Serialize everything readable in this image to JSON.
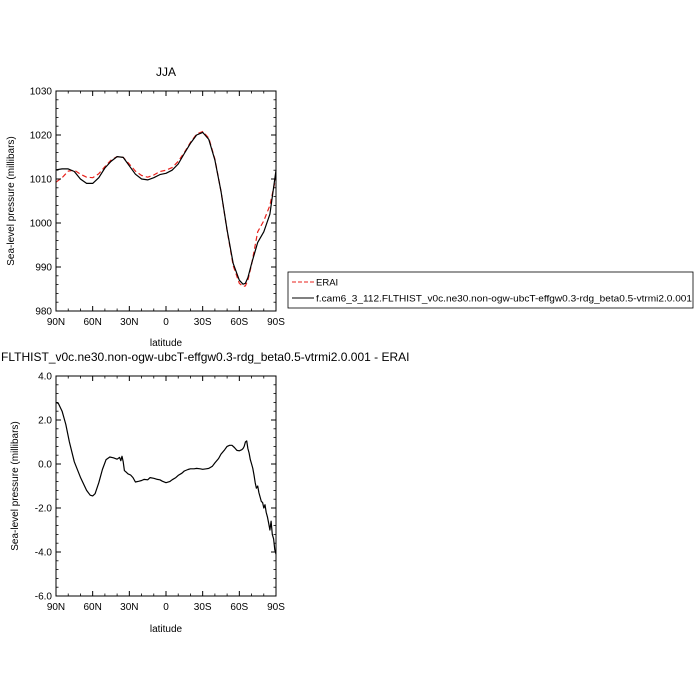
{
  "chart_data": [
    {
      "type": "line",
      "title": "JJA",
      "xlabel": "latitude",
      "ylabel": "Sea-level pressure (millibars)",
      "xlim": [
        90,
        -90
      ],
      "ylim": [
        980,
        1030
      ],
      "x_ticks": [
        90,
        60,
        30,
        0,
        -30,
        -60,
        -90
      ],
      "x_tick_labels": [
        "90N",
        "60N",
        "30N",
        "0",
        "30S",
        "60S",
        "90S"
      ],
      "y_ticks": [
        980,
        990,
        1000,
        1010,
        1020,
        1030
      ],
      "y_tick_labels": [
        "980",
        "990",
        "1000",
        "1010",
        "1020",
        "1030"
      ],
      "legend_position": "right",
      "series": [
        {
          "name": "ERAI",
          "color": "#e8211b",
          "dash": "dashed",
          "x": [
            90,
            85,
            80,
            75,
            70,
            65,
            60,
            55,
            50,
            45,
            40,
            35,
            30,
            25,
            20,
            15,
            10,
            5,
            0,
            -5,
            -10,
            -15,
            -20,
            -25,
            -30,
            -35,
            -40,
            -45,
            -50,
            -55,
            -60,
            -63,
            -65,
            -67,
            -70,
            -75,
            -80,
            -85,
            -90
          ],
          "y": [
            1009.3,
            1010.3,
            1011.8,
            1012.0,
            1011.1,
            1010.4,
            1010.3,
            1011.2,
            1012.8,
            1014.3,
            1015.1,
            1014.9,
            1013.4,
            1011.8,
            1010.8,
            1010.4,
            1010.9,
            1011.7,
            1012.0,
            1012.6,
            1014.0,
            1016.0,
            1018.3,
            1020.2,
            1020.8,
            1019.3,
            1014.5,
            1007.2,
            998.3,
            990.3,
            986.3,
            985.6,
            985.7,
            987.0,
            990.6,
            998.0,
            1000.5,
            1004.0,
            1010.5
          ]
        },
        {
          "name": "f.cam6_3_112.FLTHIST_v0c.ne30.non-ogw-ubcT-effgw0.3-rdg_beta0.5-vtrmi2.0.001",
          "color": "#000000",
          "dash": "solid",
          "x": [
            90,
            85,
            80,
            75,
            70,
            65,
            60,
            55,
            50,
            45,
            40,
            35,
            30,
            25,
            20,
            15,
            10,
            5,
            0,
            -5,
            -10,
            -15,
            -20,
            -25,
            -30,
            -35,
            -40,
            -45,
            -50,
            -55,
            -60,
            -63,
            -65,
            -67,
            -70,
            -75,
            -80,
            -85,
            -90
          ],
          "y": [
            1012.1,
            1012.3,
            1012.3,
            1011.7,
            1010.0,
            1009.0,
            1009.0,
            1010.3,
            1012.5,
            1014.0,
            1015.1,
            1014.9,
            1013.0,
            1011.1,
            1010.0,
            1009.8,
            1010.3,
            1011.0,
            1011.3,
            1012.0,
            1013.4,
            1015.8,
            1018.1,
            1020.0,
            1020.6,
            1019.0,
            1014.3,
            1007.2,
            998.4,
            990.8,
            987.0,
            986.1,
            986.3,
            987.6,
            990.8,
            995.6,
            998.0,
            1002.0,
            1012.0
          ]
        }
      ]
    },
    {
      "type": "line",
      "title": "f.cam6_3_112.FLTHIST_v0c.ne30.non-ogw-ubcT-effgw0.3-rdg_beta0.5-vtrmi2.0.001 - ERAI",
      "xlabel": "latitude",
      "ylabel": "Sea-level pressure (millibars)",
      "xlim": [
        90,
        -90
      ],
      "ylim": [
        -6,
        4
      ],
      "x_ticks": [
        90,
        60,
        30,
        0,
        -30,
        -60,
        -90
      ],
      "x_tick_labels": [
        "90N",
        "60N",
        "30N",
        "0",
        "30S",
        "60S",
        "90S"
      ],
      "y_ticks": [
        -6,
        -4,
        -2,
        0,
        2,
        4
      ],
      "y_tick_labels": [
        "-6.0",
        "-4.0",
        "-2.0",
        "0.0",
        "2.0",
        "4.0"
      ],
      "series": [
        {
          "color": "#000000",
          "dash": "solid",
          "x": [
            90,
            88,
            85,
            82,
            79,
            75,
            70,
            65,
            62,
            60,
            58,
            55,
            52,
            49,
            46,
            43,
            40,
            38,
            37,
            36,
            35,
            34,
            33,
            31,
            29,
            27,
            25,
            22,
            20,
            18,
            15,
            13,
            10,
            7,
            5,
            3,
            0,
            -3,
            -5,
            -8,
            -10,
            -13,
            -15,
            -18,
            -20,
            -23,
            -25,
            -28,
            -30,
            -33,
            -35,
            -38,
            -40,
            -43,
            -45,
            -48,
            -50,
            -52,
            -54,
            -56,
            -58,
            -60,
            -62,
            -63,
            -64,
            -65,
            -66,
            -67,
            -68,
            -69,
            -70,
            -71,
            -72,
            -73,
            -74,
            -75,
            -76,
            -77,
            -78,
            -79,
            -80,
            -81,
            -82,
            -83,
            -84,
            -85,
            -86,
            -87,
            -88,
            -89,
            -90
          ],
          "y": [
            2.8,
            2.75,
            2.4,
            1.8,
            1.0,
            0.1,
            -0.6,
            -1.2,
            -1.42,
            -1.45,
            -1.35,
            -0.85,
            -0.25,
            0.2,
            0.32,
            0.28,
            0.22,
            0.3,
            0.15,
            0.35,
            0.1,
            -0.3,
            -0.35,
            -0.45,
            -0.5,
            -0.62,
            -0.82,
            -0.78,
            -0.75,
            -0.7,
            -0.72,
            -0.62,
            -0.65,
            -0.7,
            -0.72,
            -0.78,
            -0.85,
            -0.8,
            -0.72,
            -0.62,
            -0.52,
            -0.42,
            -0.32,
            -0.25,
            -0.22,
            -0.22,
            -0.2,
            -0.22,
            -0.24,
            -0.22,
            -0.2,
            -0.1,
            0.05,
            0.25,
            0.45,
            0.65,
            0.8,
            0.85,
            0.85,
            0.75,
            0.62,
            0.6,
            0.65,
            0.7,
            0.8,
            1.0,
            1.05,
            0.7,
            0.5,
            0.2,
            0.0,
            -0.2,
            -0.5,
            -0.85,
            -1.1,
            -1.0,
            -1.3,
            -1.5,
            -1.7,
            -1.75,
            -2.0,
            -1.85,
            -2.2,
            -2.4,
            -2.7,
            -3.0,
            -2.6,
            -3.2,
            -3.4,
            -3.9,
            -4.1
          ]
        }
      ]
    }
  ]
}
